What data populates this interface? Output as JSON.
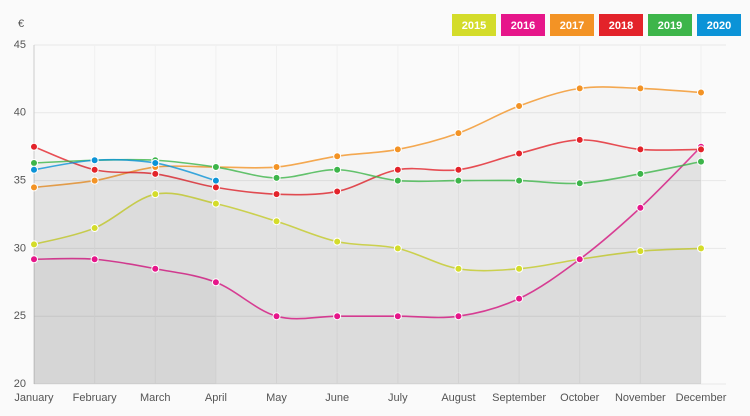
{
  "chart_data": {
    "type": "line",
    "unit": "€",
    "categories": [
      "January",
      "February",
      "March",
      "April",
      "May",
      "June",
      "July",
      "August",
      "September",
      "October",
      "November",
      "December"
    ],
    "series": [
      {
        "name": "2015",
        "color": "#d4dc2a",
        "values": [
          30.3,
          31.5,
          34.0,
          33.3,
          32.0,
          30.5,
          30.0,
          28.5,
          28.5,
          29.2,
          29.8,
          30.0
        ]
      },
      {
        "name": "2016",
        "color": "#e6168a",
        "values": [
          29.2,
          29.2,
          28.5,
          27.5,
          25.0,
          25.0,
          25.0,
          25.0,
          26.3,
          29.2,
          33.0,
          37.5
        ]
      },
      {
        "name": "2017",
        "color": "#f39325",
        "values": [
          34.5,
          35.0,
          36.0,
          36.0,
          36.0,
          36.8,
          37.3,
          38.5,
          40.5,
          41.8,
          41.8,
          41.5
        ]
      },
      {
        "name": "2018",
        "color": "#e3232a",
        "values": [
          37.5,
          35.8,
          35.5,
          34.5,
          34.0,
          34.2,
          35.8,
          35.8,
          37.0,
          38.0,
          37.3,
          37.3
        ]
      },
      {
        "name": "2019",
        "color": "#3db54a",
        "values": [
          36.3,
          36.5,
          36.5,
          36.0,
          35.2,
          35.8,
          35.0,
          35.0,
          35.0,
          34.8,
          35.5,
          36.4
        ]
      },
      {
        "name": "2020",
        "color": "#0b93d7",
        "values": [
          35.8,
          36.5,
          36.3,
          35.0,
          null,
          null,
          null,
          null,
          null,
          null,
          null,
          null
        ]
      }
    ],
    "ylim": [
      20,
      45
    ],
    "yticks": [
      20,
      25,
      30,
      35,
      40,
      45
    ],
    "grid": true,
    "legend": "top-right"
  }
}
